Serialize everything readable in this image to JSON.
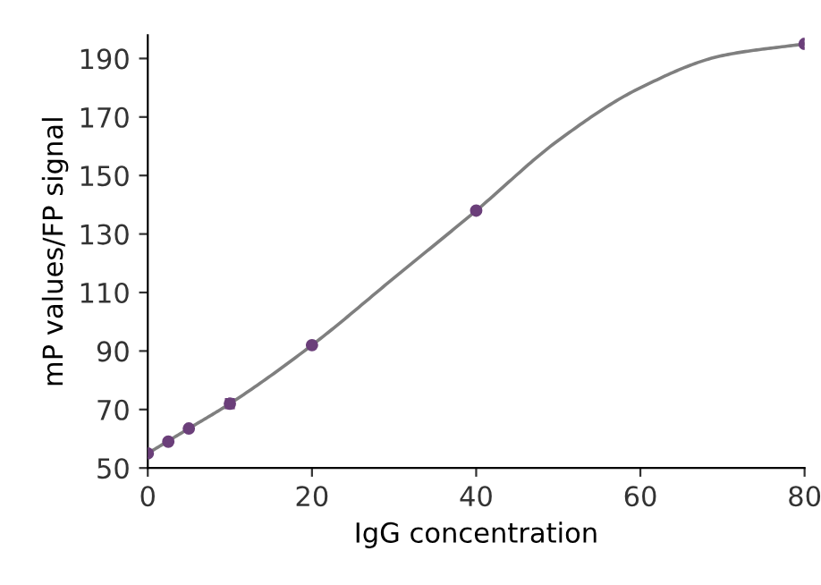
{
  "chart_data": {
    "type": "scatter",
    "xlabel": "IgG concentration",
    "ylabel": "mP values/FP signal",
    "series": [
      {
        "type": "line",
        "color": "#7f7f7f",
        "x": [
          0,
          5,
          10,
          20,
          30,
          40,
          50,
          60,
          70,
          80
        ],
        "values": [
          55,
          63.5,
          72,
          92,
          115,
          138,
          162,
          180,
          191,
          195
        ],
        "marker": "none"
      },
      {
        "color": "#6b3f7a",
        "x": [
          0,
          2.5,
          5,
          10,
          20,
          40,
          80
        ],
        "values": [
          55,
          59,
          63.5,
          72,
          92,
          138,
          195
        ],
        "errors": [
          null,
          null,
          null,
          1.5,
          null,
          null,
          null
        ],
        "marker": "circle"
      }
    ],
    "xlim": [
      0,
      80
    ],
    "xticks": [
      0,
      20,
      40,
      60,
      80
    ],
    "ylim": [
      50,
      198
    ],
    "yticks": [
      50,
      70,
      90,
      110,
      130,
      150,
      170,
      190
    ],
    "grid": false
  }
}
